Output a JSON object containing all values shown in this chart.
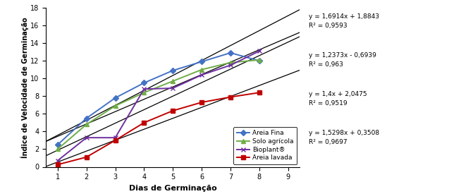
{
  "x_data": [
    1,
    2,
    3,
    4,
    5,
    6,
    7,
    8
  ],
  "areia_fina": [
    2.5,
    5.5,
    7.8,
    9.5,
    10.9,
    11.9,
    12.9,
    12.0
  ],
  "solo_agricola": [
    2.0,
    4.8,
    6.9,
    8.4,
    9.7,
    11.0,
    11.8,
    12.1
  ],
  "bioplant": [
    0.7,
    3.3,
    3.3,
    8.8,
    8.9,
    10.4,
    11.5,
    13.1
  ],
  "areia_lavada": [
    0.25,
    1.1,
    3.0,
    5.0,
    6.35,
    7.3,
    7.9,
    8.4
  ],
  "eq_areia_fina": {
    "slope": 1.6914,
    "intercept": 1.8843
  },
  "eq_solo_agricola": {
    "slope": 1.2373,
    "intercept": -0.6939
  },
  "eq_bioplant": {
    "slope": 1.4,
    "intercept": 2.0475
  },
  "eq_areia_lavada": {
    "slope": 1.5298,
    "intercept": 0.3508
  },
  "color_areia_fina": "#4472C4",
  "color_solo_agricola": "#70AD47",
  "color_bioplant": "#7030A0",
  "color_areia_lavada": "#C00000",
  "color_trendline": "#000000",
  "xlabel": "Dias de Germinação",
  "ylabel": "Índice de Velocidade de Germinação",
  "ylim": [
    0,
    18
  ],
  "xlim": [
    0.6,
    9.4
  ],
  "yticks": [
    0,
    2,
    4,
    6,
    8,
    10,
    12,
    14,
    16,
    18
  ],
  "xticks": [
    1,
    2,
    3,
    4,
    5,
    6,
    7,
    8,
    9
  ],
  "legend_labels": [
    "Areia Fina",
    "Solo agrícola",
    "Bioplant®",
    "Areia lavada"
  ],
  "eq_texts": [
    "y = 1,6914x + 1,8843\nR² = 0,9593",
    "y = 1,2373x - 0,6939\nR² = 0,963",
    "y = 1,4x + 2,0475\nR² = 0,9519",
    "y = 1,5298x + 0,3508\nR² = 0,9697"
  ]
}
